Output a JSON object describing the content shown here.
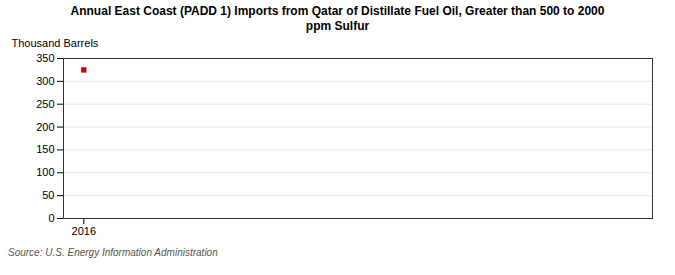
{
  "chart_data": {
    "type": "scatter",
    "title": "Annual East Coast (PADD 1) Imports from Qatar of Distillate Fuel Oil, Greater than 500 to 2000\nppm Sulfur",
    "ylabel": "Thousand Barrels",
    "source": "Source: U.S. Energy Information Administration",
    "x": [
      2016
    ],
    "values": [
      325
    ],
    "color": "#cc0000",
    "marker": "square",
    "xlim": [
      2015.5,
      2030
    ],
    "xticks": [
      2016
    ],
    "ylim": [
      0,
      350
    ],
    "yticks": [
      0,
      50,
      100,
      150,
      200,
      250,
      300,
      350
    ],
    "grid": "y"
  }
}
